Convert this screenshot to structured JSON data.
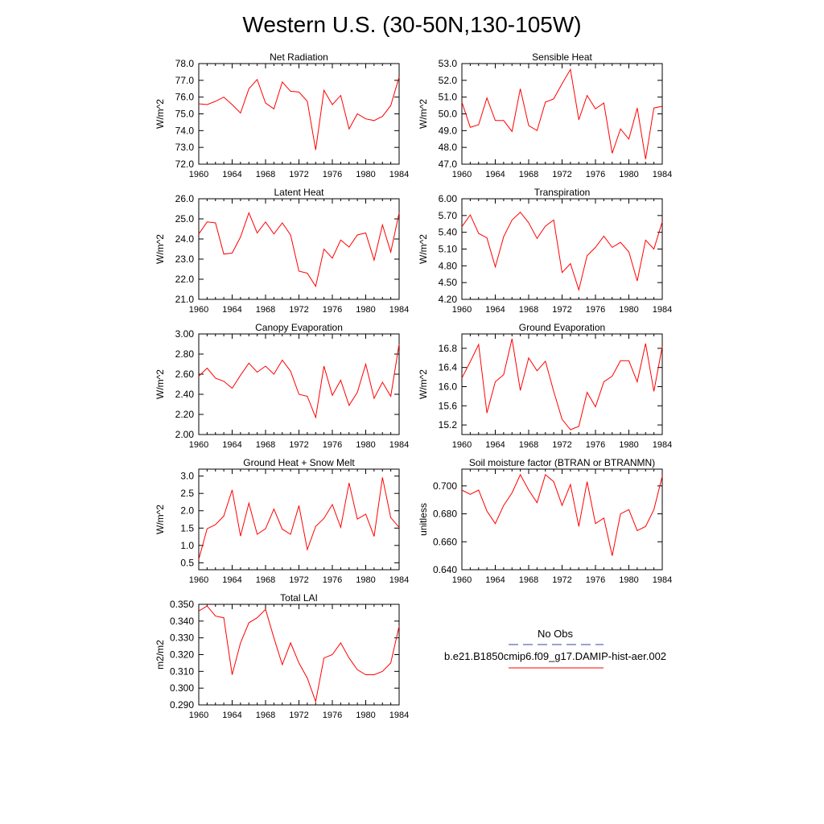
{
  "title": "Western U.S. (30-50N,130-105W)",
  "legend": {
    "entries": [
      {
        "label": "No Obs",
        "color": "#3344aa",
        "dash": true
      },
      {
        "label": "b.e21.B1850cmip6.f09_g17.DAMIP-hist-aer.002",
        "color": "#ff0000",
        "dash": false
      }
    ]
  },
  "chart_data": [
    {
      "type": "line",
      "title": "Net Radiation",
      "ylabel": "W/m^2",
      "xlim": [
        1960,
        1984
      ],
      "ylim": [
        72.0,
        78.0
      ],
      "yticks": [
        "72.0",
        "73.0",
        "74.0",
        "75.0",
        "76.0",
        "77.0",
        "78.0"
      ],
      "xticks": [
        "1960",
        "1964",
        "1968",
        "1972",
        "1976",
        "1980",
        "1984"
      ],
      "series": [
        {
          "color": "#ff0000",
          "x": [
            1960,
            1961,
            1962,
            1963,
            1964,
            1965,
            1966,
            1967,
            1968,
            1969,
            1970,
            1971,
            1972,
            1973,
            1974,
            1975,
            1976,
            1977,
            1978,
            1979,
            1980,
            1981,
            1982,
            1983,
            1984
          ],
          "values": [
            75.6,
            75.55,
            75.75,
            76.0,
            75.55,
            75.05,
            76.5,
            77.05,
            75.65,
            75.3,
            76.9,
            76.35,
            76.3,
            75.75,
            72.85,
            76.4,
            75.55,
            76.1,
            74.1,
            75.0,
            74.7,
            74.6,
            74.85,
            75.5,
            77.2
          ]
        }
      ]
    },
    {
      "type": "line",
      "title": "Sensible Heat",
      "ylabel": "W/m^2",
      "xlim": [
        1960,
        1984
      ],
      "ylim": [
        47.0,
        53.0
      ],
      "yticks": [
        "47.0",
        "48.0",
        "49.0",
        "50.0",
        "51.0",
        "52.0",
        "53.0"
      ],
      "xticks": [
        "1960",
        "1964",
        "1968",
        "1972",
        "1976",
        "1980",
        "1984"
      ],
      "series": [
        {
          "color": "#ff0000",
          "x": [
            1960,
            1961,
            1962,
            1963,
            1964,
            1965,
            1966,
            1967,
            1968,
            1969,
            1970,
            1971,
            1972,
            1973,
            1974,
            1975,
            1976,
            1977,
            1978,
            1979,
            1980,
            1981,
            1982,
            1983,
            1984
          ],
          "values": [
            50.7,
            49.2,
            49.35,
            50.95,
            49.6,
            49.6,
            48.95,
            51.5,
            49.3,
            49.0,
            50.7,
            50.9,
            51.8,
            52.65,
            49.65,
            51.1,
            50.3,
            50.65,
            47.65,
            49.1,
            48.5,
            50.35,
            47.3,
            50.35,
            50.45
          ]
        }
      ]
    },
    {
      "type": "line",
      "title": "Latent Heat",
      "ylabel": "W/m^2",
      "xlim": [
        1960,
        1984
      ],
      "ylim": [
        21.0,
        26.0
      ],
      "yticks": [
        "21.0",
        "22.0",
        "23.0",
        "24.0",
        "25.0",
        "26.0"
      ],
      "xticks": [
        "1960",
        "1964",
        "1968",
        "1972",
        "1976",
        "1980",
        "1984"
      ],
      "series": [
        {
          "color": "#ff0000",
          "x": [
            1960,
            1961,
            1962,
            1963,
            1964,
            1965,
            1966,
            1967,
            1968,
            1969,
            1970,
            1971,
            1972,
            1973,
            1974,
            1975,
            1976,
            1977,
            1978,
            1979,
            1980,
            1981,
            1982,
            1983,
            1984
          ],
          "values": [
            24.25,
            24.85,
            24.8,
            23.25,
            23.3,
            24.1,
            25.3,
            24.3,
            24.85,
            24.25,
            24.8,
            24.2,
            22.4,
            22.3,
            21.65,
            23.5,
            23.05,
            23.95,
            23.6,
            24.2,
            24.3,
            22.95,
            24.7,
            23.35,
            25.3
          ]
        }
      ]
    },
    {
      "type": "line",
      "title": "Transpiration",
      "ylabel": "W/m^2",
      "xlim": [
        1960,
        1984
      ],
      "ylim": [
        4.2,
        6.0
      ],
      "yticks": [
        "4.20",
        "4.50",
        "4.80",
        "5.10",
        "5.40",
        "5.70",
        "6.00"
      ],
      "xticks": [
        "1960",
        "1964",
        "1968",
        "1972",
        "1976",
        "1980",
        "1984"
      ],
      "series": [
        {
          "color": "#ff0000",
          "x": [
            1960,
            1961,
            1962,
            1963,
            1964,
            1965,
            1966,
            1967,
            1968,
            1969,
            1970,
            1971,
            1972,
            1973,
            1974,
            1975,
            1976,
            1977,
            1978,
            1979,
            1980,
            1981,
            1982,
            1983,
            1984
          ],
          "values": [
            5.5,
            5.71,
            5.38,
            5.3,
            4.78,
            5.32,
            5.62,
            5.76,
            5.57,
            5.29,
            5.51,
            5.62,
            4.68,
            4.84,
            4.37,
            4.98,
            5.13,
            5.33,
            5.13,
            5.22,
            5.05,
            4.53,
            5.26,
            5.1,
            5.59
          ]
        }
      ]
    },
    {
      "type": "line",
      "title": "Canopy Evaporation",
      "ylabel": "W/m^2",
      "xlim": [
        1960,
        1984
      ],
      "ylim": [
        2.0,
        3.0
      ],
      "yticks": [
        "2.00",
        "2.20",
        "2.40",
        "2.60",
        "2.80",
        "3.00"
      ],
      "xticks": [
        "1960",
        "1964",
        "1968",
        "1972",
        "1976",
        "1980",
        "1984"
      ],
      "series": [
        {
          "color": "#ff0000",
          "x": [
            1960,
            1961,
            1962,
            1963,
            1964,
            1965,
            1966,
            1967,
            1968,
            1969,
            1970,
            1971,
            1972,
            1973,
            1974,
            1975,
            1976,
            1977,
            1978,
            1979,
            1980,
            1981,
            1982,
            1983,
            1984
          ],
          "values": [
            2.58,
            2.66,
            2.56,
            2.53,
            2.46,
            2.59,
            2.71,
            2.62,
            2.68,
            2.6,
            2.74,
            2.63,
            2.4,
            2.38,
            2.17,
            2.68,
            2.39,
            2.54,
            2.29,
            2.42,
            2.7,
            2.36,
            2.52,
            2.38,
            2.9
          ]
        }
      ]
    },
    {
      "type": "line",
      "title": "Ground Evaporation",
      "ylabel": "W/m^2",
      "xlim": [
        1960,
        1984
      ],
      "ylim": [
        15.0,
        17.1
      ],
      "yticks": [
        "15.2",
        "15.6",
        "16.0",
        "16.4",
        "16.8"
      ],
      "xticks": [
        "1960",
        "1964",
        "1968",
        "1972",
        "1976",
        "1980",
        "1984"
      ],
      "series": [
        {
          "color": "#ff0000",
          "x": [
            1960,
            1961,
            1962,
            1963,
            1964,
            1965,
            1966,
            1967,
            1968,
            1969,
            1970,
            1971,
            1972,
            1973,
            1974,
            1975,
            1976,
            1977,
            1978,
            1979,
            1980,
            1981,
            1982,
            1983,
            1984
          ],
          "values": [
            16.18,
            16.52,
            16.88,
            15.45,
            16.1,
            16.25,
            17.0,
            15.92,
            16.6,
            16.33,
            16.53,
            15.9,
            15.32,
            15.1,
            15.17,
            15.88,
            15.58,
            16.1,
            16.22,
            16.54,
            16.54,
            16.1,
            16.9,
            15.9,
            16.84
          ]
        }
      ]
    },
    {
      "type": "line",
      "title": "Ground Heat + Snow Melt",
      "ylabel": "W/m^2",
      "xlim": [
        1960,
        1984
      ],
      "ylim": [
        0.3,
        3.2
      ],
      "yticks": [
        "0.5",
        "1.0",
        "1.5",
        "2.0",
        "2.5",
        "3.0"
      ],
      "xticks": [
        "1960",
        "1964",
        "1968",
        "1972",
        "1976",
        "1980",
        "1984"
      ],
      "series": [
        {
          "color": "#ff0000",
          "x": [
            1960,
            1961,
            1962,
            1963,
            1964,
            1965,
            1966,
            1967,
            1968,
            1969,
            1970,
            1971,
            1972,
            1973,
            1974,
            1975,
            1976,
            1977,
            1978,
            1979,
            1980,
            1981,
            1982,
            1983,
            1984
          ],
          "values": [
            0.6,
            1.48,
            1.6,
            1.85,
            2.6,
            1.27,
            2.22,
            1.32,
            1.48,
            2.05,
            1.47,
            1.32,
            2.15,
            0.88,
            1.55,
            1.78,
            2.18,
            1.52,
            2.8,
            1.76,
            1.9,
            1.26,
            2.96,
            1.8,
            1.52
          ]
        }
      ]
    },
    {
      "type": "line",
      "title": "Soil moisture factor (BTRAN or BTRANMN)",
      "ylabel": "unitless",
      "xlim": [
        1960,
        1984
      ],
      "ylim": [
        0.64,
        0.712
      ],
      "yticks": [
        "0.640",
        "0.660",
        "0.680",
        "0.700"
      ],
      "xticks": [
        "1960",
        "1964",
        "1968",
        "1972",
        "1976",
        "1980",
        "1984"
      ],
      "series": [
        {
          "color": "#ff0000",
          "x": [
            1960,
            1961,
            1962,
            1963,
            1964,
            1965,
            1966,
            1967,
            1968,
            1969,
            1970,
            1971,
            1972,
            1973,
            1974,
            1975,
            1976,
            1977,
            1978,
            1979,
            1980,
            1981,
            1982,
            1983,
            1984
          ],
          "values": [
            0.697,
            0.694,
            0.697,
            0.682,
            0.673,
            0.686,
            0.695,
            0.708,
            0.697,
            0.688,
            0.708,
            0.703,
            0.686,
            0.701,
            0.671,
            0.703,
            0.673,
            0.677,
            0.65,
            0.68,
            0.683,
            0.668,
            0.671,
            0.683,
            0.707
          ]
        }
      ]
    },
    {
      "type": "line",
      "title": "Total LAI",
      "ylabel": "m2/m2",
      "xlim": [
        1960,
        1984
      ],
      "ylim": [
        0.29,
        0.35
      ],
      "yticks": [
        "0.290",
        "0.300",
        "0.310",
        "0.320",
        "0.330",
        "0.340",
        "0.350"
      ],
      "xticks": [
        "1960",
        "1964",
        "1968",
        "1972",
        "1976",
        "1980",
        "1984"
      ],
      "series": [
        {
          "color": "#ff0000",
          "x": [
            1960,
            1961,
            1962,
            1963,
            1964,
            1965,
            1966,
            1967,
            1968,
            1969,
            1970,
            1971,
            1972,
            1973,
            1974,
            1975,
            1976,
            1977,
            1978,
            1979,
            1980,
            1981,
            1982,
            1983,
            1984
          ],
          "values": [
            0.346,
            0.349,
            0.343,
            0.342,
            0.308,
            0.327,
            0.339,
            0.342,
            0.347,
            0.33,
            0.314,
            0.327,
            0.315,
            0.306,
            0.292,
            0.318,
            0.32,
            0.327,
            0.318,
            0.311,
            0.308,
            0.308,
            0.31,
            0.315,
            0.337
          ]
        }
      ]
    }
  ]
}
